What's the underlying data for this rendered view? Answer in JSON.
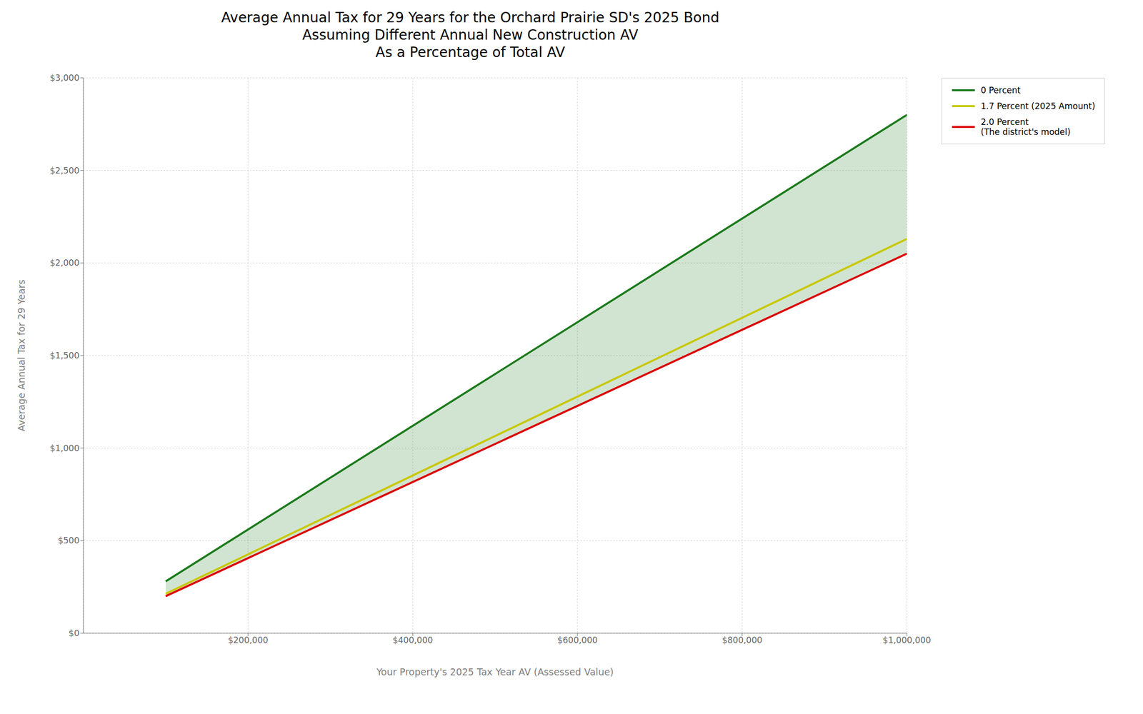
{
  "chart_data": {
    "type": "line",
    "title": "Average Annual Tax for 29 Years for the Orchard Prairie SD's 2025 Bond\nAssuming Different Annual New Construction AV\nAs a Percentage of Total AV",
    "x_label": "Your Property's 2025 Tax Year AV (Assessed Value)",
    "y_label": "Average Annual Tax for 29 Years",
    "x": [
      100000,
      1000000
    ],
    "series": [
      {
        "name": "0 Percent",
        "color": "#1a7a1a",
        "values": [
          280,
          2800
        ]
      },
      {
        "name": "1.7 Percent (2025 Amount)",
        "color": "#c8c800",
        "values": [
          213,
          2130
        ]
      },
      {
        "name": "2.0 Percent\n(The district's model)",
        "color": "#dd0000",
        "values": [
          200,
          2050
        ]
      }
    ],
    "xlim": [
      0,
      1000000
    ],
    "ylim": [
      0,
      3000
    ],
    "xticks": [
      {
        "value": 200000,
        "label": "$200,000"
      },
      {
        "value": 400000,
        "label": "$400,000"
      },
      {
        "value": 600000,
        "label": "$600,000"
      },
      {
        "value": 800000,
        "label": "$800,000"
      },
      {
        "value": 1000000,
        "label": "$1,000,000"
      }
    ],
    "yticks": [
      {
        "value": 0,
        "label": "$0"
      },
      {
        "value": 500,
        "label": "$500"
      },
      {
        "value": 1000,
        "label": "$1,000"
      },
      {
        "value": 1500,
        "label": "$1,500"
      },
      {
        "value": 2000,
        "label": "$2,000"
      },
      {
        "value": 2500,
        "label": "$2,500"
      },
      {
        "value": 3000,
        "label": "$3,000"
      }
    ],
    "grid": true,
    "legend": "right"
  }
}
